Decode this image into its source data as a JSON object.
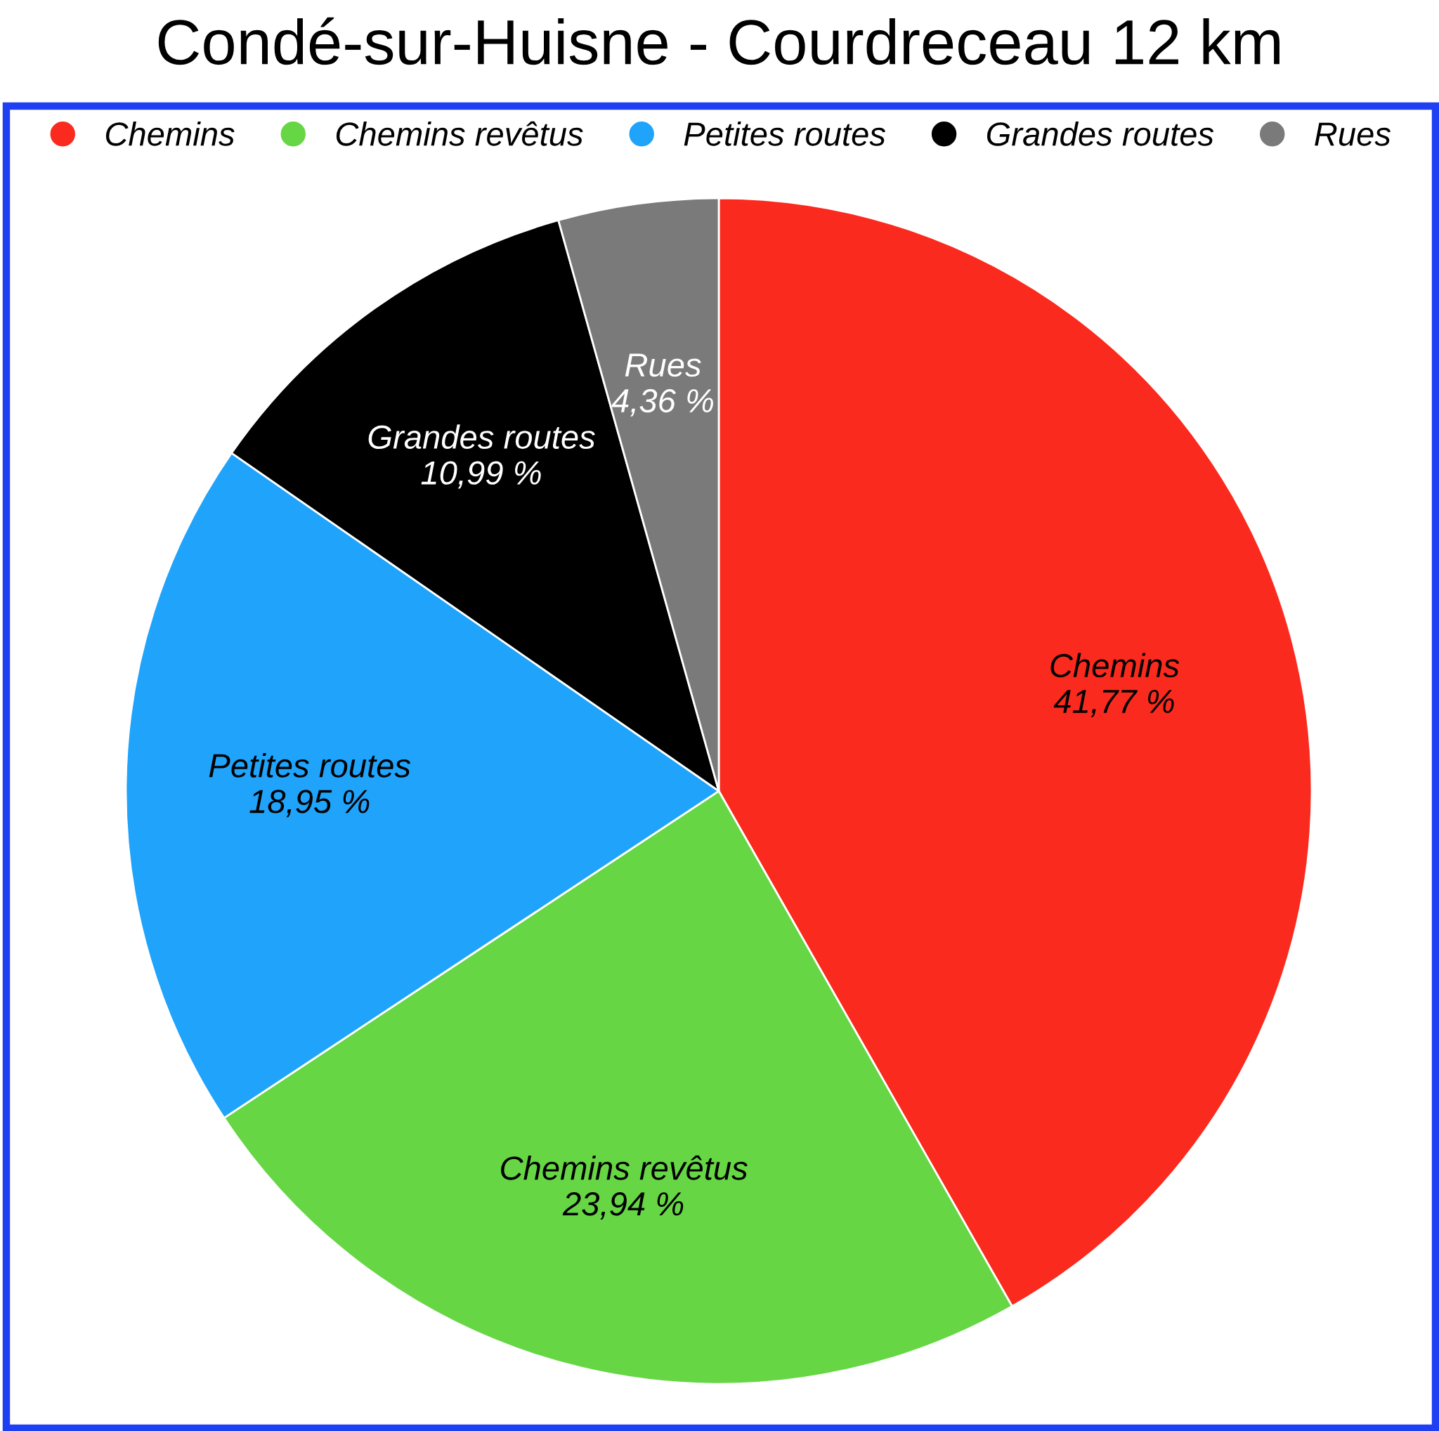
{
  "chart_data": {
    "type": "pie",
    "title": "Condé-sur-Huisne - Courdreceau 12 km",
    "categories": [
      "Chemins",
      "Chemins revêtus",
      "Petites routes",
      "Grandes routes",
      "Rues"
    ],
    "values": [
      41.77,
      23.94,
      18.95,
      10.99,
      4.36
    ],
    "value_labels": [
      "41,77 %",
      "23,94 %",
      "18,95 %",
      "10,99 %",
      "4,36 %"
    ],
    "colors": [
      "#fb2a1e",
      "#66d645",
      "#1fa3fb",
      "#000000",
      "#7a7a7a"
    ],
    "legend": "top"
  }
}
